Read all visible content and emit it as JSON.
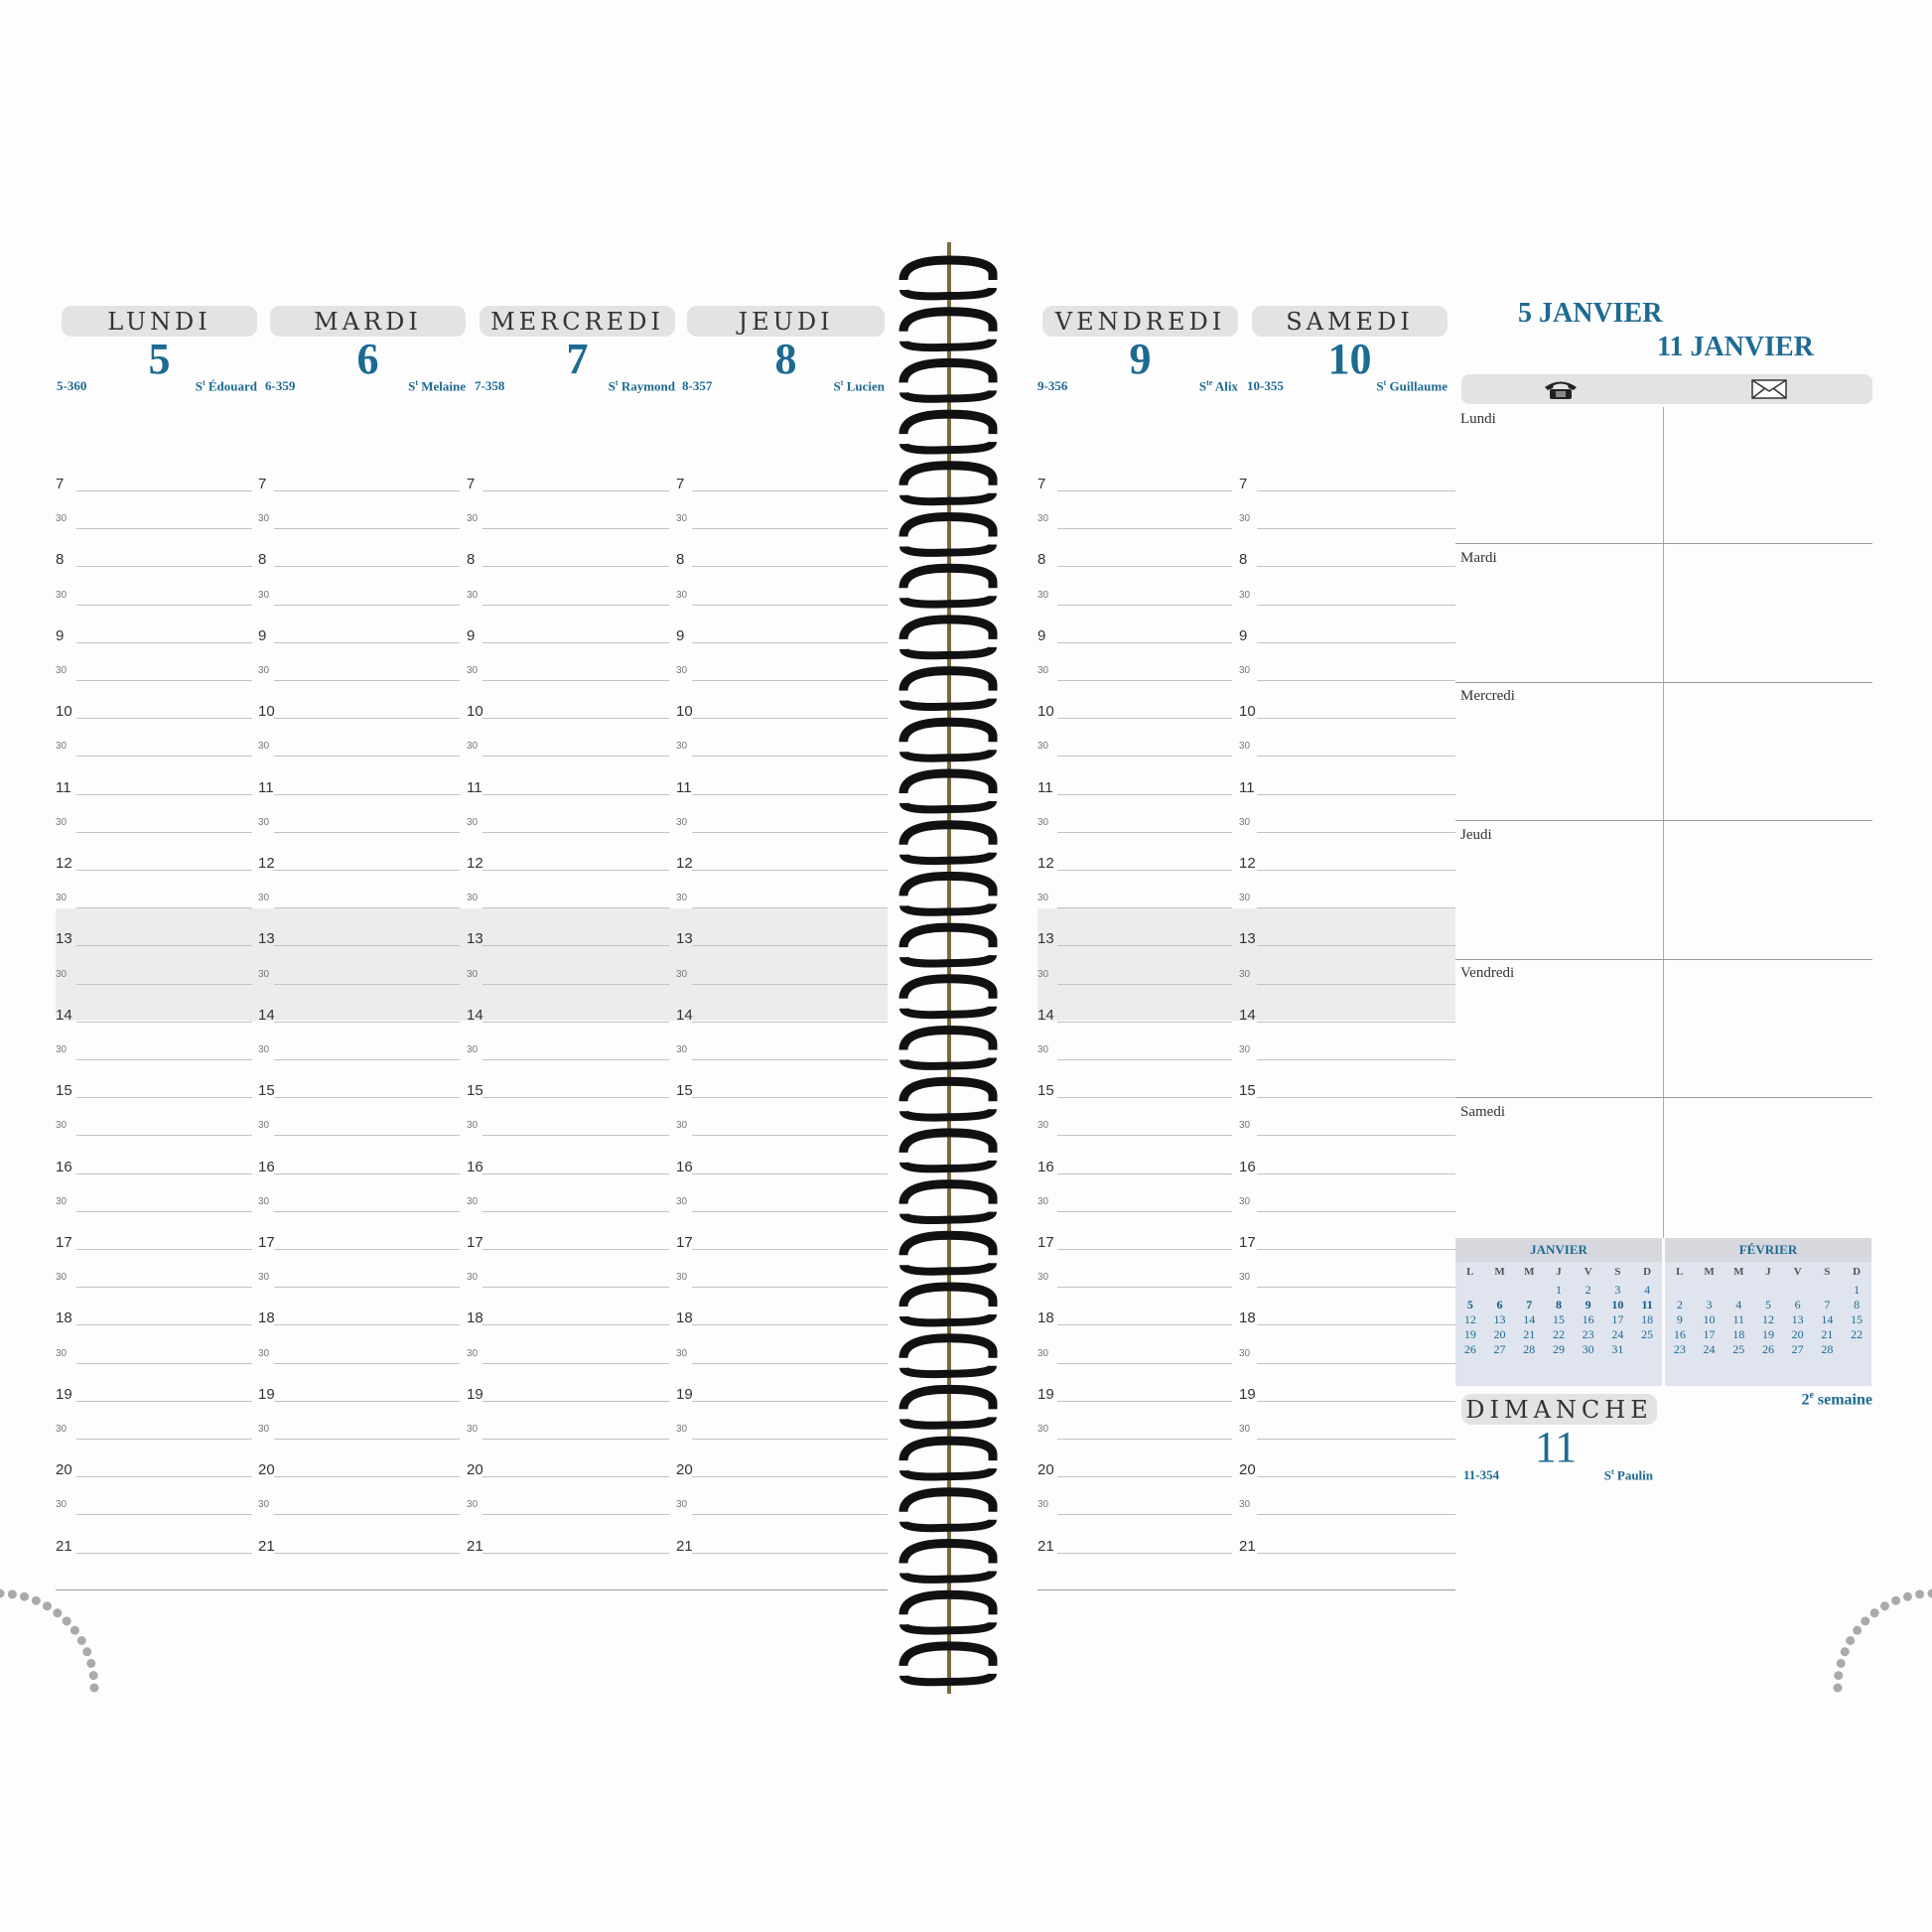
{
  "left_days": [
    {
      "name": "LUNDI",
      "number": "5",
      "code": "5-360",
      "saint": {
        "abbr": "S",
        "sup": "t",
        "name": "Édouard"
      }
    },
    {
      "name": "MARDI",
      "number": "6",
      "code": "6-359",
      "saint": {
        "abbr": "S",
        "sup": "t",
        "name": "Melaine"
      }
    },
    {
      "name": "MERCREDI",
      "number": "7",
      "code": "7-358",
      "saint": {
        "abbr": "S",
        "sup": "t",
        "name": "Raymond"
      }
    },
    {
      "name": "JEUDI",
      "number": "8",
      "code": "8-357",
      "saint": {
        "abbr": "S",
        "sup": "t",
        "name": "Lucien"
      }
    }
  ],
  "right_days": [
    {
      "name": "VENDREDI",
      "number": "9",
      "code": "9-356",
      "saint": {
        "abbr": "S",
        "sup": "te",
        "name": "Alix"
      }
    },
    {
      "name": "SAMEDI",
      "number": "10",
      "code": "10-355",
      "saint": {
        "abbr": "S",
        "sup": "t",
        "name": "Guillaume"
      }
    }
  ],
  "hours": [
    "7",
    "30",
    "8",
    "30",
    "9",
    "30",
    "10",
    "30",
    "11",
    "30",
    "12",
    "30",
    "13",
    "30",
    "14",
    "30",
    "15",
    "30",
    "16",
    "30",
    "17",
    "30",
    "18",
    "30",
    "19",
    "30",
    "20",
    "30",
    "21"
  ],
  "week": {
    "start": "5 JANVIER",
    "end": "11 JANVIER",
    "phone_icon": "phone-icon",
    "mail_icon": "envelope-icon"
  },
  "notes_sections": [
    "Lundi",
    "Mardi",
    "Mercredi",
    "Jeudi",
    "Vendredi",
    "Samedi"
  ],
  "mini_calendars": [
    {
      "month": "JANVIER",
      "headers": [
        "L",
        "M",
        "M",
        "J",
        "V",
        "S",
        "D"
      ],
      "weeks": [
        [
          "",
          "",
          "",
          "1",
          "2",
          "3",
          "4"
        ],
        [
          "5",
          "6",
          "7",
          "8",
          "9",
          "10",
          "11"
        ],
        [
          "12",
          "13",
          "14",
          "15",
          "16",
          "17",
          "18"
        ],
        [
          "19",
          "20",
          "21",
          "22",
          "23",
          "24",
          "25"
        ],
        [
          "26",
          "27",
          "28",
          "29",
          "30",
          "31",
          ""
        ]
      ],
      "current_week": 1
    },
    {
      "month": "FÉVRIER",
      "headers": [
        "L",
        "M",
        "M",
        "J",
        "V",
        "S",
        "D"
      ],
      "weeks": [
        [
          "",
          "",
          "",
          "",
          "",
          "",
          "1"
        ],
        [
          "2",
          "3",
          "4",
          "5",
          "6",
          "7",
          "8"
        ],
        [
          "9",
          "10",
          "11",
          "12",
          "13",
          "14",
          "15"
        ],
        [
          "16",
          "17",
          "18",
          "19",
          "20",
          "21",
          "22"
        ],
        [
          "23",
          "24",
          "25",
          "26",
          "27",
          "28",
          ""
        ]
      ],
      "current_week": -1
    }
  ],
  "week_number": {
    "num": "2",
    "sup": "e",
    "label": "semaine"
  },
  "sunday": {
    "name": "DIMANCHE",
    "number": "11",
    "code": "11-354",
    "saint": {
      "abbr": "S",
      "sup": "t",
      "name": "Paulin"
    }
  },
  "colors": {
    "accent": "#1d6a92",
    "pill": "#e3e3e3",
    "band": "#ececec"
  }
}
